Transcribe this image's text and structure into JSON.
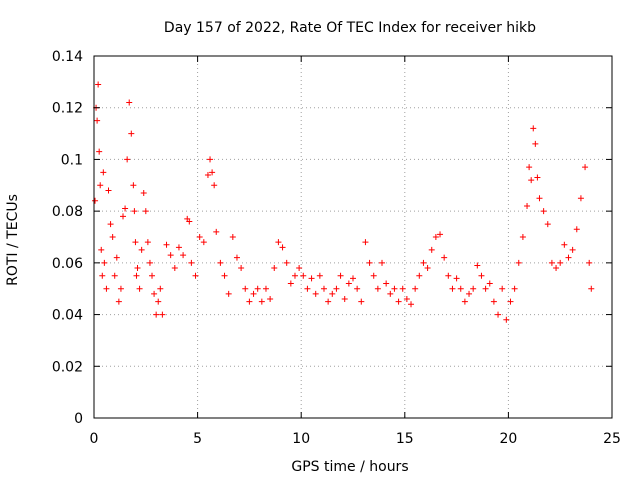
{
  "chart_data": {
    "type": "scatter",
    "title": "Day 157 of 2022, Rate Of TEC Index for receiver hikb",
    "xlabel": "GPS time / hours",
    "ylabel": "ROTI / TECUs",
    "xlim": [
      0,
      25
    ],
    "ylim": [
      0,
      0.14
    ],
    "xticks": [
      "0",
      "5",
      "10",
      "15",
      "20",
      "25"
    ],
    "yticks": [
      "0",
      "0.02",
      "0.04",
      "0.06",
      "0.08",
      "0.1",
      "0.12",
      "0.14"
    ],
    "xtick_values": [
      0,
      5,
      10,
      15,
      20,
      25
    ],
    "ytick_values": [
      0,
      0.02,
      0.04,
      0.06,
      0.08,
      0.1,
      0.12,
      0.14
    ],
    "grid": true,
    "legend": "none",
    "marker": "plus",
    "color": "#ff0000",
    "series": [
      {
        "x": [
          0.05,
          0.1,
          0.15,
          0.2,
          0.25,
          0.3,
          0.35,
          0.4,
          0.45,
          0.5,
          0.6,
          0.7,
          0.8,
          0.9,
          1.0,
          1.1,
          1.2,
          1.3,
          1.4,
          1.5,
          1.6,
          1.7,
          1.8,
          1.9,
          1.95,
          2.0,
          2.05,
          2.1,
          2.2,
          2.3,
          2.4,
          2.5,
          2.6,
          2.7,
          2.8,
          2.9,
          3.0,
          3.1,
          3.2,
          3.3,
          3.5,
          3.7,
          3.9,
          4.1,
          4.3,
          4.5,
          4.6,
          4.7,
          4.9,
          5.1,
          5.3,
          5.5,
          5.6,
          5.7,
          5.8,
          5.9,
          6.1,
          6.3,
          6.5,
          6.7,
          6.9,
          7.1,
          7.3,
          7.5,
          7.7,
          7.9,
          8.1,
          8.3,
          8.5,
          8.7,
          8.9,
          9.1,
          9.3,
          9.5,
          9.7,
          9.9,
          10.1,
          10.3,
          10.5,
          10.7,
          10.9,
          11.1,
          11.3,
          11.5,
          11.7,
          11.9,
          12.1,
          12.3,
          12.5,
          12.7,
          12.9,
          13.1,
          13.3,
          13.5,
          13.7,
          13.9,
          14.1,
          14.3,
          14.5,
          14.7,
          14.9,
          15.1,
          15.3,
          15.5,
          15.7,
          15.9,
          16.1,
          16.3,
          16.5,
          16.7,
          16.9,
          17.1,
          17.3,
          17.5,
          17.7,
          17.9,
          18.1,
          18.3,
          18.5,
          18.7,
          18.9,
          19.1,
          19.3,
          19.5,
          19.7,
          19.9,
          20.1,
          20.3,
          20.5,
          20.7,
          20.9,
          21.0,
          21.1,
          21.2,
          21.3,
          21.4,
          21.5,
          21.7,
          21.9,
          22.1,
          22.3,
          22.5,
          22.7,
          22.9,
          23.1,
          23.3,
          23.5,
          23.7,
          23.9,
          24.0
        ],
        "y": [
          0.084,
          0.12,
          0.115,
          0.129,
          0.103,
          0.09,
          0.065,
          0.055,
          0.095,
          0.06,
          0.05,
          0.088,
          0.075,
          0.07,
          0.055,
          0.062,
          0.045,
          0.05,
          0.078,
          0.081,
          0.1,
          0.122,
          0.11,
          0.09,
          0.08,
          0.068,
          0.055,
          0.058,
          0.05,
          0.065,
          0.087,
          0.08,
          0.068,
          0.06,
          0.055,
          0.048,
          0.04,
          0.045,
          0.05,
          0.04,
          0.067,
          0.063,
          0.058,
          0.066,
          0.063,
          0.077,
          0.076,
          0.06,
          0.055,
          0.07,
          0.068,
          0.094,
          0.1,
          0.095,
          0.09,
          0.072,
          0.06,
          0.055,
          0.048,
          0.07,
          0.062,
          0.058,
          0.05,
          0.045,
          0.048,
          0.05,
          0.045,
          0.05,
          0.046,
          0.058,
          0.068,
          0.066,
          0.06,
          0.052,
          0.055,
          0.058,
          0.055,
          0.05,
          0.054,
          0.048,
          0.055,
          0.05,
          0.045,
          0.048,
          0.05,
          0.055,
          0.046,
          0.052,
          0.054,
          0.05,
          0.045,
          0.068,
          0.06,
          0.055,
          0.05,
          0.06,
          0.052,
          0.048,
          0.05,
          0.045,
          0.05,
          0.046,
          0.044,
          0.05,
          0.055,
          0.06,
          0.058,
          0.065,
          0.07,
          0.071,
          0.062,
          0.055,
          0.05,
          0.054,
          0.05,
          0.045,
          0.048,
          0.05,
          0.059,
          0.055,
          0.05,
          0.052,
          0.045,
          0.04,
          0.05,
          0.038,
          0.045,
          0.05,
          0.06,
          0.07,
          0.082,
          0.097,
          0.092,
          0.112,
          0.106,
          0.093,
          0.085,
          0.08,
          0.075,
          0.06,
          0.058,
          0.06,
          0.067,
          0.062,
          0.065,
          0.073,
          0.085,
          0.097,
          0.06,
          0.05
        ]
      }
    ]
  }
}
